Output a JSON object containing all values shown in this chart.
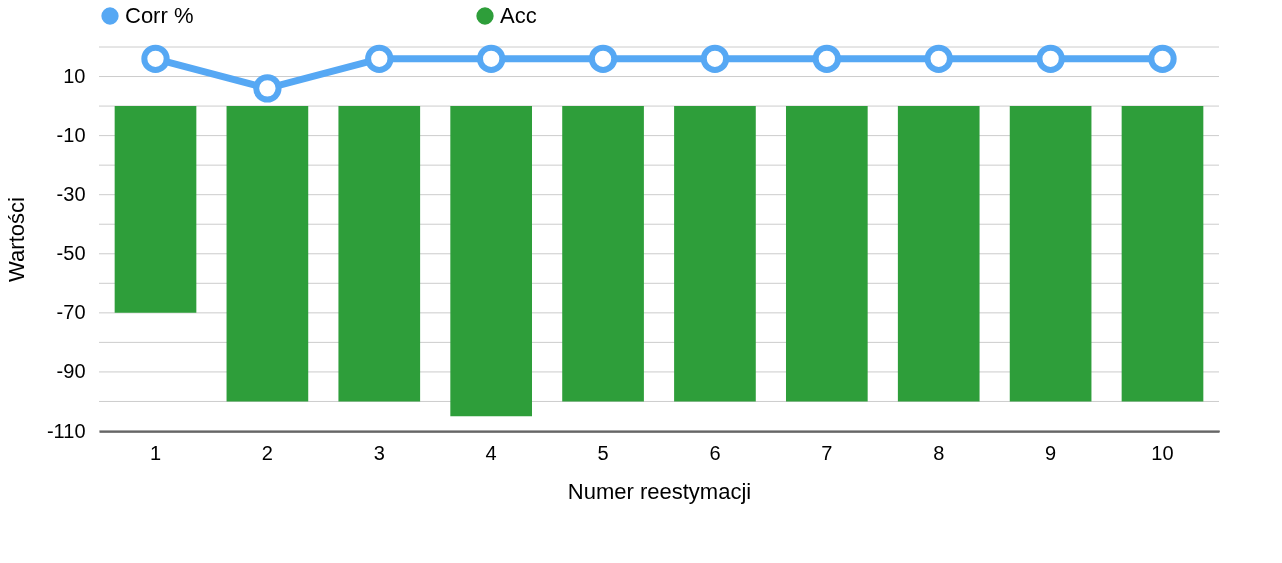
{
  "chart_data": {
    "type": "bar",
    "xlabel": "Numer reestymacji",
    "ylabel": "Wartości",
    "categories": [
      "1",
      "2",
      "3",
      "4",
      "5",
      "6",
      "7",
      "8",
      "9",
      "10"
    ],
    "series": [
      {
        "name": "Corr %",
        "type": "line",
        "color": "#56a8f4",
        "values": [
          16,
          6,
          16,
          16,
          16,
          16,
          16,
          16,
          16,
          16
        ]
      },
      {
        "name": "Acc",
        "color": "#2e9e3a",
        "values": [
          -70,
          -100,
          -100,
          -105,
          -100,
          -100,
          -100,
          -100,
          -100,
          -100
        ]
      }
    ],
    "ylim": [
      -110,
      20
    ],
    "yticks": [
      {
        "value": 20,
        "label": null
      },
      10,
      {
        "value": 0,
        "label": null
      },
      -10,
      {
        "value": -20,
        "label": null
      },
      -30,
      {
        "value": -40,
        "label": null
      },
      -50,
      {
        "value": -60,
        "label": null
      },
      -70,
      {
        "value": -80,
        "label": null
      },
      -90,
      {
        "value": -100,
        "label": null
      },
      -110
    ],
    "grid": "y",
    "legend": "top",
    "marker": "circle",
    "line_style": "solid"
  }
}
